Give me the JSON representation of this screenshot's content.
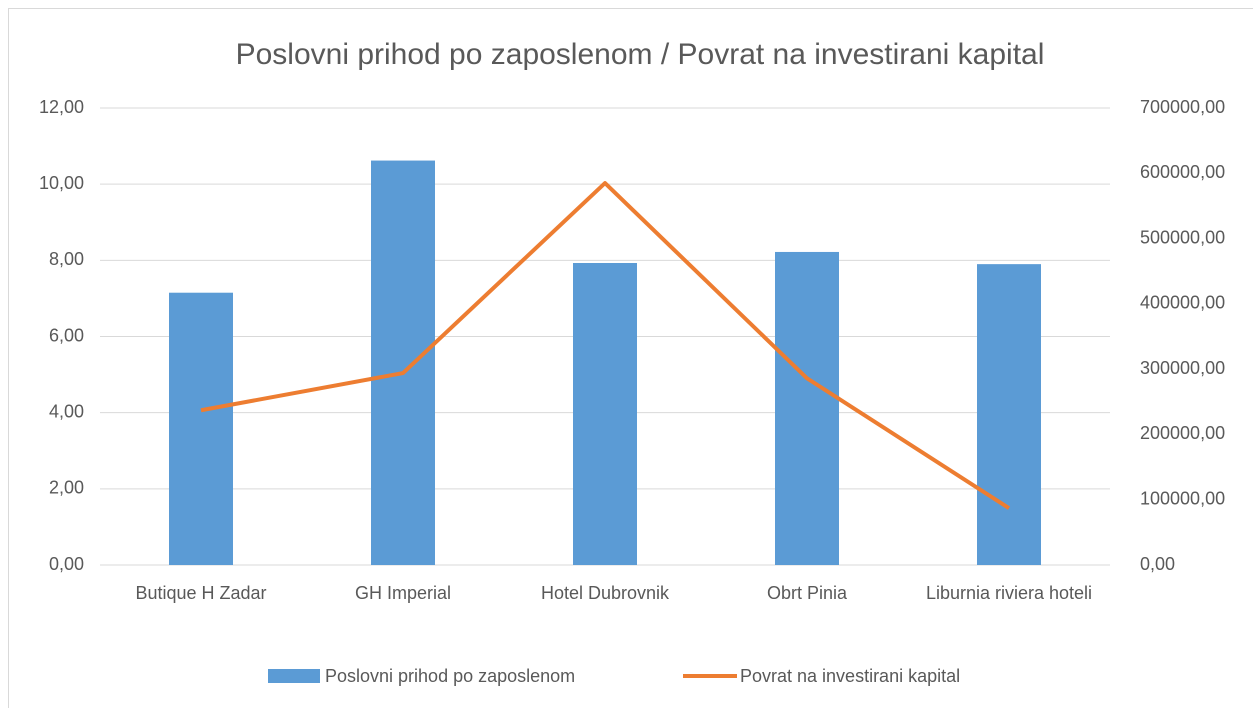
{
  "chart_data": {
    "type": "bar_line",
    "title": "Poslovni prihod po zaposlenom / Povrat na investirani kapital",
    "categories": [
      "Butique H Zadar",
      "GH Imperial",
      "Hotel Dubrovnik",
      "Obrt Pinia",
      "Liburnia riviera hoteli"
    ],
    "series": [
      {
        "name": "Poslovni prihod po zaposlenom",
        "type": "bar",
        "color": "#5b9bd5",
        "axis": "y",
        "values": [
          7.15,
          10.62,
          7.93,
          8.22,
          7.9
        ]
      },
      {
        "name": "Povrat na investirani kapital",
        "type": "line",
        "color": "#ed7d31",
        "axis": "y2",
        "values": [
          237000,
          294000,
          585000,
          286000,
          87000
        ]
      }
    ],
    "ylim": [
      0,
      12
    ],
    "yticks": [
      {
        "value": 0,
        "label": "0,00"
      },
      {
        "value": 2,
        "label": "2,00"
      },
      {
        "value": 4,
        "label": "4,00"
      },
      {
        "value": 6,
        "label": "6,00"
      },
      {
        "value": 8,
        "label": "8,00"
      },
      {
        "value": 10,
        "label": "10,00"
      },
      {
        "value": 12,
        "label": "12,00"
      }
    ],
    "y2lim": [
      0,
      700000
    ],
    "y2ticks": [
      {
        "value": 0,
        "label": "0,00"
      },
      {
        "value": 100000,
        "label": "100000,00"
      },
      {
        "value": 200000,
        "label": "200000,00"
      },
      {
        "value": 300000,
        "label": "300000,00"
      },
      {
        "value": 400000,
        "label": "400000,00"
      },
      {
        "value": 500000,
        "label": "500000,00"
      },
      {
        "value": 600000,
        "label": "600000,00"
      },
      {
        "value": 700000,
        "label": "700000,00"
      }
    ],
    "grid": true,
    "legend": "bottom"
  }
}
